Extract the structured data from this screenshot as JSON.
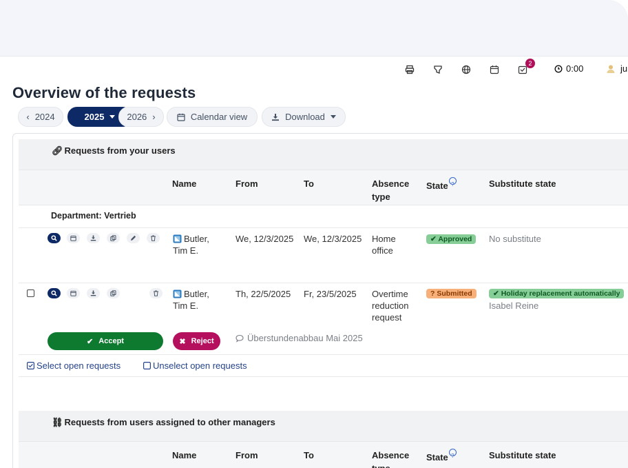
{
  "header": {
    "notification_count": "2",
    "timer": "0:00",
    "user_initials": "ju"
  },
  "page": {
    "title": "Overview of the requests"
  },
  "toolbar": {
    "prev_year": "2024",
    "current_year": "2025",
    "next_year": "2026",
    "calendar_view": "Calendar view",
    "download": "Download"
  },
  "section1": {
    "title": "Requests from your users",
    "columns": {
      "name": "Name",
      "from": "From",
      "to": "To",
      "absence_type_line1": "Absence",
      "absence_type_line2": "type",
      "state": "State",
      "substitute_state": "Substitute state"
    },
    "department": "Department: Vertrieb",
    "rows": [
      {
        "name_line1": "Butler,",
        "name_line2": "Tim E.",
        "from": "We, 12/3/2025",
        "to": "We, 12/3/2025",
        "absence_line1": "Home",
        "absence_line2": "office",
        "state": "Approved",
        "substitute": "No substitute"
      },
      {
        "name_line1": "Butler,",
        "name_line2": "Tim E.",
        "from": "Th, 22/5/2025",
        "to": "Fr, 23/5/2025",
        "absence_line1": "Overtime",
        "absence_line2": "reduction",
        "absence_line3": "request",
        "state": "Submitted",
        "substitute": "Holiday replacement automatically",
        "substitute_name": "Isabel Reine",
        "accept": "Accept",
        "reject": "Reject",
        "comment": "Überstundenabbau Mai 2025"
      }
    ],
    "select_open": "Select open requests",
    "unselect_open": "Unselect open requests"
  },
  "section2": {
    "title": "Requests from users assigned to other managers",
    "columns": {
      "name": "Name",
      "from": "From",
      "to": "To",
      "absence_type_line1": "Absence",
      "absence_type_line2": "type",
      "state": "State",
      "substitute_state": "Substitute state"
    }
  },
  "colors": {
    "primary": "#0e2a66",
    "accept": "#0e7a30",
    "reject": "#b5105e",
    "approved": "#86cd97",
    "submitted": "#f7b07a"
  }
}
